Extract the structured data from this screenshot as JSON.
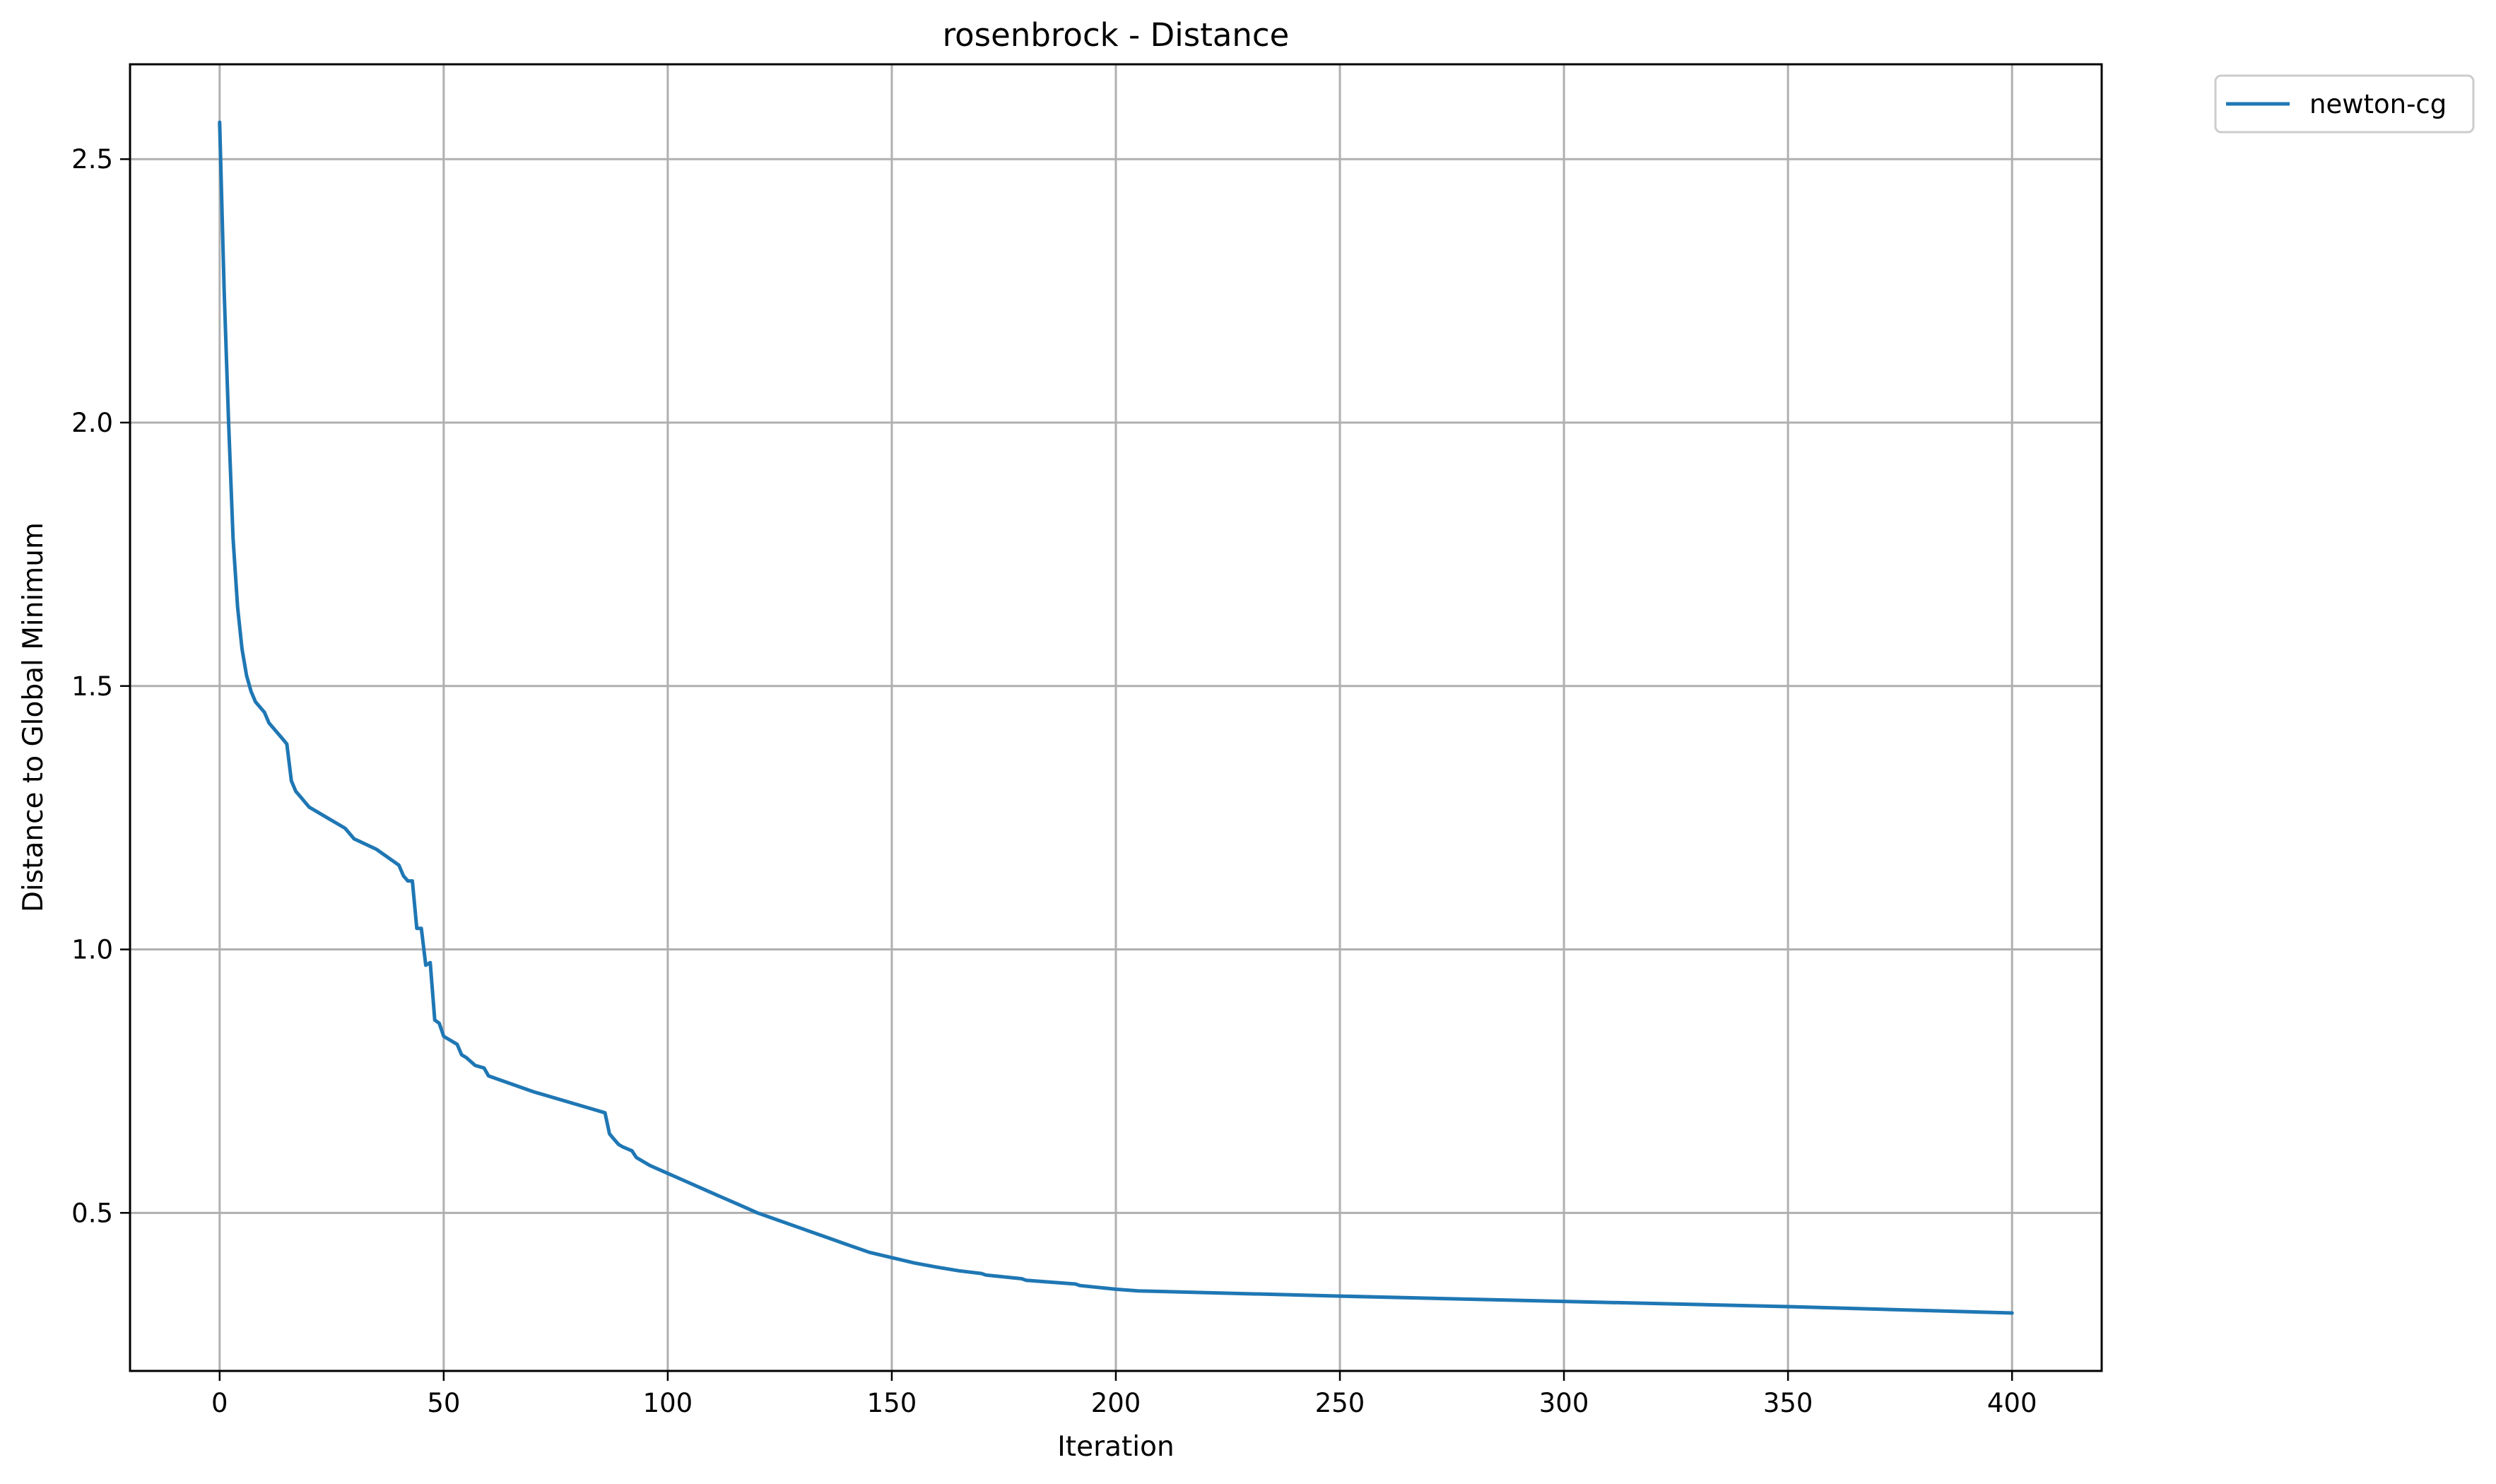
{
  "chart_data": {
    "type": "line",
    "title": "rosenbrock - Distance",
    "xlabel": "Iteration",
    "ylabel": "Distance to Global Minimum",
    "xlim": [
      -20,
      420
    ],
    "ylim": [
      0.2,
      2.68
    ],
    "xticks": [
      0,
      50,
      100,
      150,
      200,
      250,
      300,
      350,
      400
    ],
    "yticks": [
      0.5,
      1.0,
      1.5,
      2.0,
      2.5
    ],
    "xtick_labels": [
      "0",
      "50",
      "100",
      "150",
      "200",
      "250",
      "300",
      "350",
      "400"
    ],
    "ytick_labels": [
      "0.5",
      "1.0",
      "1.5",
      "2.0",
      "2.5"
    ],
    "grid": true,
    "legend_position": "outside-top-right",
    "series": [
      {
        "name": "newton-cg",
        "color": "#1f77b4",
        "x": [
          0,
          1,
          2,
          3,
          4,
          5,
          6,
          7,
          8,
          9,
          10,
          11,
          12,
          13,
          14,
          15,
          16,
          17,
          18,
          19,
          20,
          22,
          24,
          26,
          28,
          30,
          35,
          40,
          41,
          42,
          43,
          44,
          45,
          46,
          47,
          48,
          49,
          50,
          53,
          54,
          55,
          57,
          59,
          60,
          70,
          80,
          86,
          87,
          88,
          89,
          90,
          92,
          93,
          96,
          100,
          104,
          108,
          112,
          116,
          120,
          125,
          130,
          135,
          140,
          145,
          150,
          155,
          160,
          165,
          170,
          171,
          179,
          180,
          191,
          192,
          200,
          205,
          250,
          300,
          350,
          400
        ],
        "values": [
          2.57,
          2.25,
          2.0,
          1.78,
          1.65,
          1.57,
          1.52,
          1.49,
          1.47,
          1.46,
          1.45,
          1.43,
          1.42,
          1.41,
          1.4,
          1.39,
          1.32,
          1.3,
          1.29,
          1.28,
          1.27,
          1.26,
          1.25,
          1.24,
          1.23,
          1.21,
          1.19,
          1.16,
          1.14,
          1.13,
          1.13,
          1.04,
          1.04,
          0.97,
          0.975,
          0.866,
          0.86,
          0.835,
          0.82,
          0.8,
          0.795,
          0.78,
          0.775,
          0.76,
          0.73,
          0.705,
          0.69,
          0.65,
          0.64,
          0.63,
          0.625,
          0.618,
          0.605,
          0.59,
          0.575,
          0.56,
          0.545,
          0.53,
          0.515,
          0.5,
          0.485,
          0.47,
          0.455,
          0.44,
          0.425,
          0.415,
          0.405,
          0.397,
          0.39,
          0.385,
          0.382,
          0.375,
          0.372,
          0.365,
          0.362,
          0.355,
          0.352,
          0.342,
          0.332,
          0.322,
          0.31
        ]
      }
    ]
  }
}
